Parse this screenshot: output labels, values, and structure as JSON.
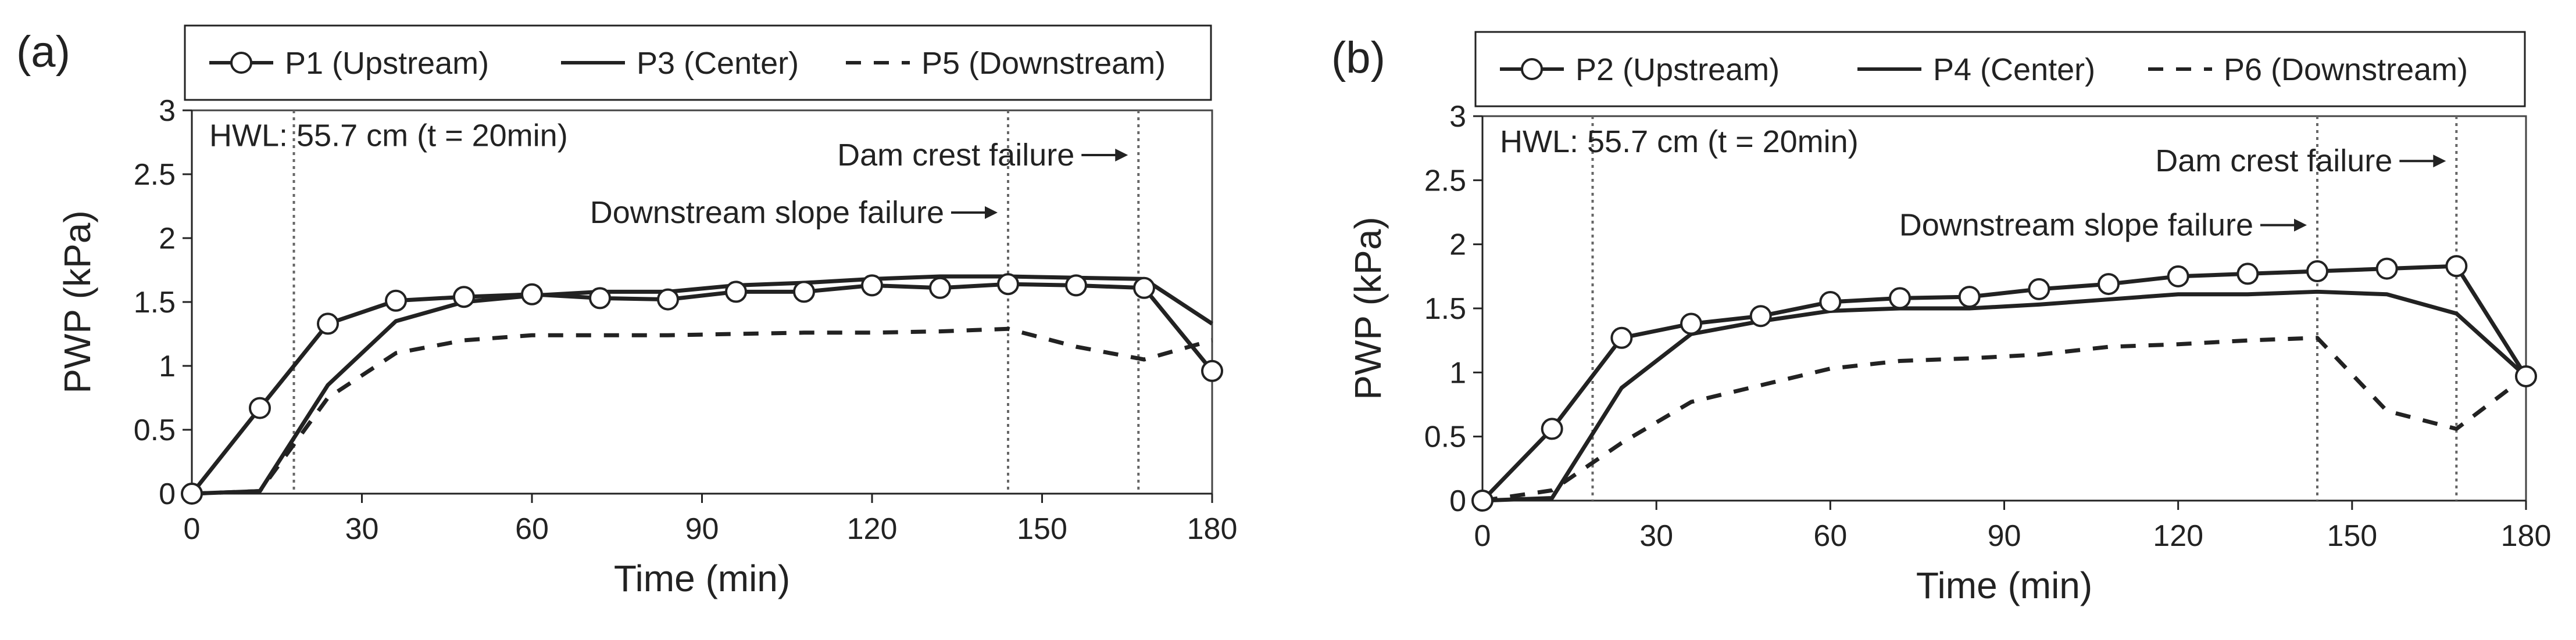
{
  "chart_data": [
    {
      "panel_label": "(a)",
      "type": "line",
      "xlabel": "Time (min)",
      "ylabel": "PWP (kPa)",
      "xlim": [
        0,
        180
      ],
      "ylim": [
        0,
        3
      ],
      "xticks": [
        0,
        30,
        60,
        90,
        120,
        150,
        180
      ],
      "yticks": [
        0,
        0.5,
        1,
        1.5,
        2,
        2.5,
        3
      ],
      "xtick_labels": [
        "0",
        "30",
        "60",
        "90",
        "120",
        "150",
        "180"
      ],
      "ytick_labels": [
        "0",
        "0.5",
        "1",
        "1.5",
        "2",
        "2.5",
        "3"
      ],
      "hwl_label": "HWL: 55.7 cm (t = 20min)",
      "vertical_lines": [
        18,
        144,
        167
      ],
      "annotations": [
        {
          "text": "Dam crest failure",
          "x_end": 167,
          "y": 2.65
        },
        {
          "text": "Downstream slope failure",
          "x_end": 144,
          "y": 2.2
        }
      ],
      "series": [
        {
          "name": "P1 (Upstream)",
          "style": "solid",
          "marker": "circle",
          "color": "#222222",
          "x": [
            0,
            12,
            24,
            36,
            48,
            60,
            72,
            84,
            96,
            108,
            120,
            132,
            144,
            156,
            168,
            180
          ],
          "y": [
            0,
            0.67,
            1.33,
            1.51,
            1.54,
            1.56,
            1.53,
            1.52,
            1.58,
            1.58,
            1.63,
            1.61,
            1.64,
            1.63,
            1.61,
            0.96
          ]
        },
        {
          "name": "P3 (Center)",
          "style": "solid",
          "marker": "none",
          "color": "#222222",
          "x": [
            0,
            12,
            24,
            36,
            48,
            60,
            72,
            84,
            96,
            108,
            120,
            132,
            144,
            156,
            168,
            180
          ],
          "y": [
            0,
            0.02,
            0.85,
            1.35,
            1.5,
            1.55,
            1.58,
            1.58,
            1.63,
            1.65,
            1.68,
            1.7,
            1.7,
            1.69,
            1.68,
            1.33
          ]
        },
        {
          "name": "P5 (Downstream)",
          "style": "dashed",
          "marker": "none",
          "color": "#222222",
          "x": [
            0,
            12,
            24,
            36,
            48,
            60,
            72,
            84,
            96,
            108,
            120,
            132,
            144,
            156,
            168,
            180
          ],
          "y": [
            0,
            0.02,
            0.75,
            1.1,
            1.2,
            1.24,
            1.24,
            1.24,
            1.25,
            1.26,
            1.26,
            1.27,
            1.29,
            1.15,
            1.05,
            1.2
          ]
        }
      ]
    },
    {
      "panel_label": "(b)",
      "type": "line",
      "xlabel": "Time (min)",
      "ylabel": "PWP (kPa)",
      "xlim": [
        0,
        180
      ],
      "ylim": [
        0,
        3
      ],
      "xticks": [
        0,
        30,
        60,
        90,
        120,
        150,
        180
      ],
      "yticks": [
        0,
        0.5,
        1,
        1.5,
        2,
        2.5,
        3
      ],
      "xtick_labels": [
        "0",
        "30",
        "60",
        "90",
        "120",
        "150",
        "180"
      ],
      "ytick_labels": [
        "0",
        "0.5",
        "1",
        "1.5",
        "2",
        "2.5",
        "3"
      ],
      "hwl_label": "HWL: 55.7 cm (t = 20min)",
      "vertical_lines": [
        19,
        144,
        168
      ],
      "annotations": [
        {
          "text": "Dam crest failure",
          "x_end": 168,
          "y": 2.65
        },
        {
          "text": "Downstream slope failure",
          "x_end": 144,
          "y": 2.15
        }
      ],
      "series": [
        {
          "name": "P2 (Upstream)",
          "style": "solid",
          "marker": "circle",
          "color": "#222222",
          "x": [
            0,
            12,
            24,
            36,
            48,
            60,
            72,
            84,
            96,
            108,
            120,
            132,
            144,
            156,
            168,
            180
          ],
          "y": [
            0,
            0.56,
            1.27,
            1.38,
            1.44,
            1.55,
            1.58,
            1.59,
            1.65,
            1.69,
            1.75,
            1.77,
            1.79,
            1.81,
            1.83,
            0.97
          ]
        },
        {
          "name": "P4 (Center)",
          "style": "solid",
          "marker": "none",
          "color": "#222222",
          "x": [
            0,
            12,
            24,
            36,
            48,
            60,
            72,
            84,
            96,
            108,
            120,
            132,
            144,
            156,
            168,
            180
          ],
          "y": [
            0,
            0.02,
            0.88,
            1.3,
            1.4,
            1.48,
            1.5,
            1.5,
            1.53,
            1.57,
            1.61,
            1.61,
            1.63,
            1.61,
            1.46,
            0.97
          ]
        },
        {
          "name": "P6 (Downstream)",
          "style": "dashed",
          "marker": "none",
          "color": "#222222",
          "x": [
            0,
            12,
            24,
            36,
            48,
            60,
            72,
            84,
            96,
            108,
            120,
            132,
            144,
            156,
            168,
            180
          ],
          "y": [
            0,
            0.08,
            0.45,
            0.77,
            0.9,
            1.03,
            1.09,
            1.11,
            1.14,
            1.2,
            1.22,
            1.25,
            1.27,
            0.7,
            0.56,
            0.97
          ]
        }
      ]
    }
  ]
}
